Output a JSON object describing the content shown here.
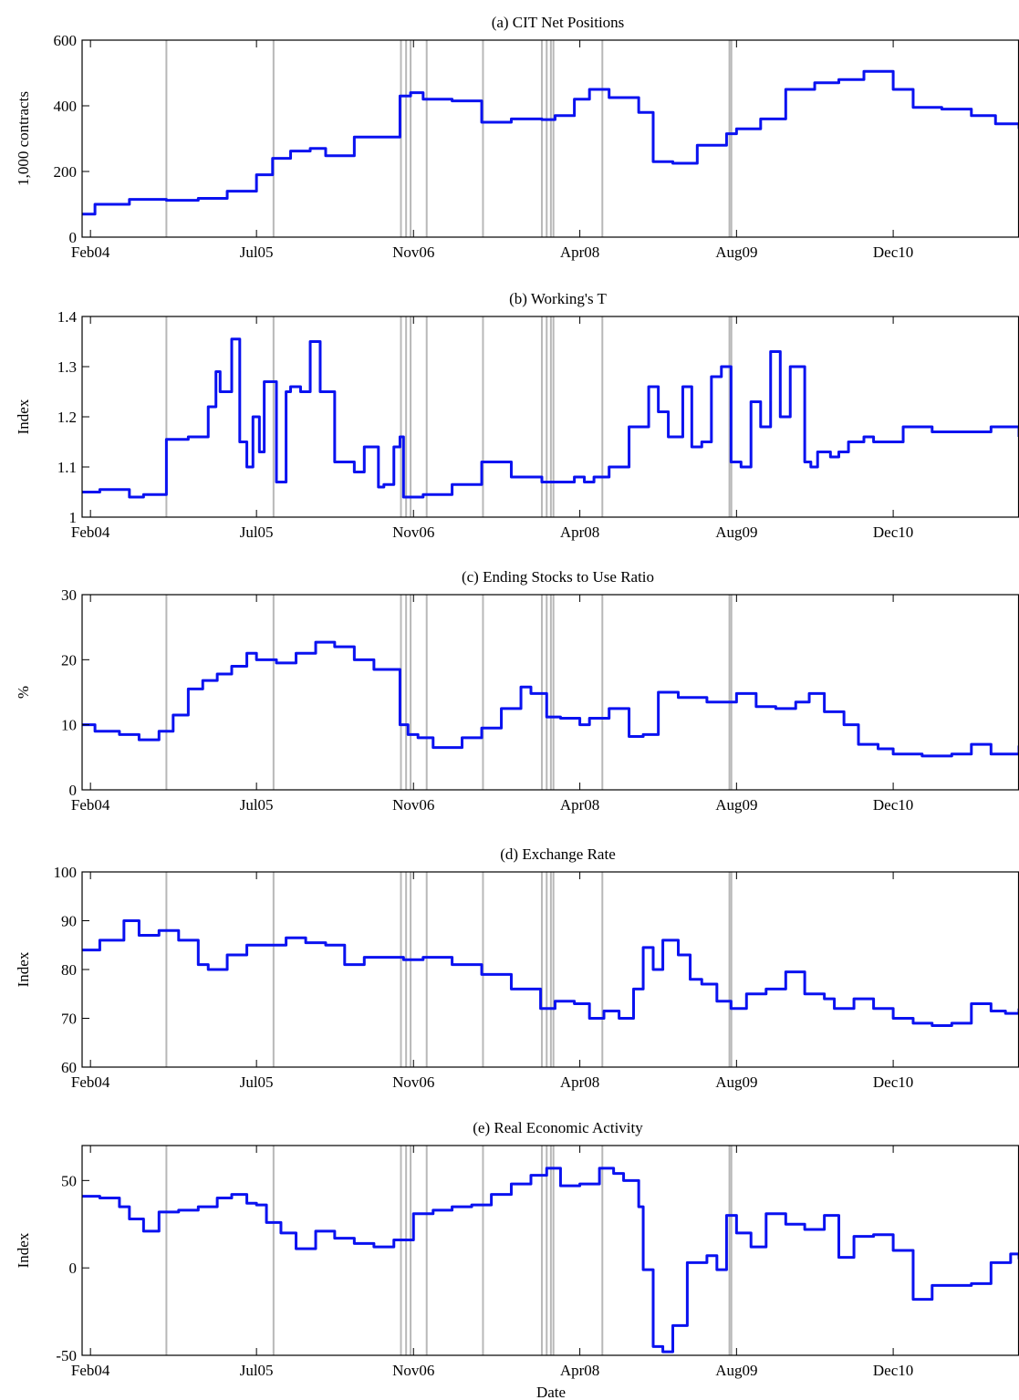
{
  "figure": {
    "xlabel": "Date",
    "x_ticks": [
      {
        "date": "2004-02-01",
        "label": "Feb04"
      },
      {
        "date": "2005-07-01",
        "label": "Jul05"
      },
      {
        "date": "2006-11-01",
        "label": "Nov06"
      },
      {
        "date": "2008-04-01",
        "label": "Apr08"
      },
      {
        "date": "2009-08-01",
        "label": "Aug09"
      },
      {
        "date": "2010-12-01",
        "label": "Dec10"
      }
    ],
    "xlim": [
      "2004-01-06",
      "2011-12-27"
    ],
    "event_lines": [
      {
        "date": "2004-09-24"
      },
      {
        "date": "2005-08-23"
      },
      {
        "date": "2006-09-23"
      },
      {
        "date": "2006-10-09"
      },
      {
        "date": "2006-10-23"
      },
      {
        "date": "2006-12-12"
      },
      {
        "date": "2007-06-05"
      },
      {
        "date": "2007-12-05"
      },
      {
        "date": "2007-12-20"
      },
      {
        "date": "2008-01-02"
      },
      {
        "date": "2008-01-10"
      },
      {
        "date": "2008-06-10"
      },
      {
        "date": "2009-07-10"
      },
      {
        "date": "2009-07-16"
      }
    ],
    "line_color": "#0a12f0",
    "event_color": "#b8b8b8"
  },
  "chart_data": [
    {
      "type": "line",
      "title": "(a) CIT Net Positions",
      "ylabel": "1,000 contracts",
      "ylim": [
        0,
        600
      ],
      "yticks": [
        "0",
        "200",
        "400",
        "600"
      ],
      "series": [
        {
          "x": [
            "2004-01-06",
            "2004-02-15",
            "2004-06-01",
            "2004-09-24",
            "2005-01-01",
            "2005-04-01",
            "2005-07-01",
            "2005-08-20",
            "2005-10-15",
            "2005-12-15",
            "2006-02-01",
            "2006-05-01",
            "2006-09-20",
            "2006-10-23",
            "2006-12-01",
            "2007-03-01",
            "2007-06-01",
            "2007-09-01",
            "2007-12-05",
            "2008-01-15",
            "2008-03-15",
            "2008-05-01",
            "2008-07-01",
            "2008-10-01",
            "2008-11-15",
            "2009-01-15",
            "2009-04-01",
            "2009-07-01",
            "2009-08-01",
            "2009-10-15",
            "2010-01-01",
            "2010-04-01",
            "2010-06-15",
            "2010-09-01",
            "2010-12-01",
            "2011-02-01",
            "2011-05-01",
            "2011-08-01",
            "2011-10-15",
            "2011-12-27"
          ],
          "y": [
            70,
            100,
            115,
            112,
            118,
            140,
            190,
            240,
            262,
            270,
            248,
            305,
            430,
            440,
            420,
            415,
            350,
            360,
            358,
            370,
            420,
            450,
            425,
            380,
            230,
            225,
            280,
            315,
            330,
            360,
            450,
            470,
            480,
            505,
            450,
            395,
            390,
            370,
            345,
            330
          ]
        }
      ]
    },
    {
      "type": "line",
      "title": "(b) Working's T",
      "ylabel": "Index",
      "ylim": [
        1,
        1.4
      ],
      "yticks": [
        "1",
        "1.1",
        "1.2",
        "1.3",
        "1.4"
      ],
      "series": [
        {
          "x": [
            "2004-01-06",
            "2004-03-01",
            "2004-06-01",
            "2004-07-15",
            "2004-09-24",
            "2004-12-01",
            "2005-02-01",
            "2005-02-25",
            "2005-03-10",
            "2005-04-15",
            "2005-05-10",
            "2005-06-01",
            "2005-06-20",
            "2005-07-10",
            "2005-07-25",
            "2005-09-01",
            "2005-10-01",
            "2005-10-15",
            "2005-11-15",
            "2005-12-15",
            "2006-01-15",
            "2006-03-01",
            "2006-05-01",
            "2006-06-01",
            "2006-07-15",
            "2006-08-01",
            "2006-09-01",
            "2006-09-20",
            "2006-10-01",
            "2006-12-01",
            "2007-03-01",
            "2007-06-01",
            "2007-09-01",
            "2007-12-05",
            "2008-01-15",
            "2008-03-15",
            "2008-04-15",
            "2008-05-15",
            "2008-07-01",
            "2008-09-01",
            "2008-11-01",
            "2008-12-01",
            "2009-01-01",
            "2009-02-15",
            "2009-03-15",
            "2009-04-15",
            "2009-05-15",
            "2009-06-15",
            "2009-07-15",
            "2009-08-15",
            "2009-09-15",
            "2009-10-15",
            "2009-11-15",
            "2009-12-15",
            "2010-01-15",
            "2010-03-01",
            "2010-03-20",
            "2010-04-10",
            "2010-05-01",
            "2010-05-20",
            "2010-06-15",
            "2010-07-15",
            "2010-09-01",
            "2010-10-01",
            "2011-01-01",
            "2011-04-01",
            "2011-07-01",
            "2011-10-01",
            "2011-12-27"
          ],
          "y": [
            1.05,
            1.055,
            1.04,
            1.045,
            1.155,
            1.16,
            1.22,
            1.29,
            1.25,
            1.355,
            1.15,
            1.1,
            1.2,
            1.13,
            1.27,
            1.07,
            1.25,
            1.26,
            1.25,
            1.35,
            1.25,
            1.11,
            1.09,
            1.14,
            1.06,
            1.065,
            1.14,
            1.16,
            1.04,
            1.045,
            1.065,
            1.11,
            1.08,
            1.07,
            1.07,
            1.08,
            1.07,
            1.08,
            1.1,
            1.18,
            1.26,
            1.21,
            1.16,
            1.26,
            1.14,
            1.15,
            1.28,
            1.3,
            1.11,
            1.1,
            1.23,
            1.18,
            1.33,
            1.2,
            1.3,
            1.11,
            1.1,
            1.13,
            1.13,
            1.12,
            1.13,
            1.15,
            1.16,
            1.15,
            1.18,
            1.17,
            1.17,
            1.18,
            1.16
          ]
        }
      ]
    },
    {
      "type": "line",
      "title": "(c) Ending Stocks to Use Ratio",
      "ylabel": "%",
      "ylim": [
        0,
        30
      ],
      "yticks": [
        "0",
        "10",
        "20",
        "30"
      ],
      "series": [
        {
          "x": [
            "2004-01-06",
            "2004-02-15",
            "2004-05-01",
            "2004-07-01",
            "2004-09-01",
            "2004-10-15",
            "2004-12-01",
            "2005-01-15",
            "2005-03-01",
            "2005-04-15",
            "2005-06-01",
            "2005-07-01",
            "2005-09-01",
            "2005-11-01",
            "2006-01-01",
            "2006-03-01",
            "2006-05-01",
            "2006-07-01",
            "2006-09-20",
            "2006-10-15",
            "2006-11-15",
            "2007-01-01",
            "2007-04-01",
            "2007-06-01",
            "2007-08-01",
            "2007-10-01",
            "2007-11-01",
            "2007-12-20",
            "2008-02-01",
            "2008-04-01",
            "2008-05-01",
            "2008-07-01",
            "2008-09-01",
            "2008-10-15",
            "2008-12-01",
            "2009-02-01",
            "2009-05-01",
            "2009-08-01",
            "2009-10-01",
            "2009-12-01",
            "2010-02-01",
            "2010-03-15",
            "2010-05-01",
            "2010-07-01",
            "2010-08-15",
            "2010-10-15",
            "2010-12-01",
            "2011-03-01",
            "2011-06-01",
            "2011-08-01",
            "2011-10-01",
            "2011-12-27"
          ],
          "y": [
            10,
            9,
            8.5,
            7.7,
            9,
            11.5,
            15.5,
            16.8,
            17.8,
            19,
            21,
            20,
            19.5,
            21,
            22.7,
            22,
            20,
            18.5,
            10,
            8.5,
            8,
            6.5,
            8,
            9.5,
            12.5,
            15.8,
            14.8,
            11.2,
            11,
            10,
            11,
            12.5,
            8.2,
            8.5,
            15,
            14.2,
            13.5,
            14.8,
            12.8,
            12.5,
            13.5,
            14.8,
            12,
            10,
            7,
            6.3,
            5.5,
            5.2,
            5.5,
            7,
            5.5,
            6.8
          ]
        }
      ]
    },
    {
      "type": "line",
      "title": "(d) Exchange Rate",
      "ylabel": "Index",
      "ylim": [
        60,
        100
      ],
      "yticks": [
        "60",
        "70",
        "80",
        "90",
        "100"
      ],
      "series": [
        {
          "x": [
            "2004-01-06",
            "2004-03-01",
            "2004-05-15",
            "2004-07-01",
            "2004-09-01",
            "2004-11-01",
            "2005-01-01",
            "2005-02-01",
            "2005-04-01",
            "2005-06-01",
            "2005-08-01",
            "2005-10-01",
            "2005-12-01",
            "2006-02-01",
            "2006-04-01",
            "2006-06-01",
            "2006-08-01",
            "2006-10-01",
            "2006-12-01",
            "2007-03-01",
            "2007-06-01",
            "2007-09-01",
            "2007-12-01",
            "2008-01-15",
            "2008-03-15",
            "2008-05-01",
            "2008-06-15",
            "2008-08-01",
            "2008-09-15",
            "2008-10-15",
            "2008-11-15",
            "2008-12-15",
            "2009-02-01",
            "2009-03-10",
            "2009-04-15",
            "2009-06-01",
            "2009-07-15",
            "2009-09-01",
            "2009-11-01",
            "2010-01-01",
            "2010-03-01",
            "2010-05-01",
            "2010-06-01",
            "2010-08-01",
            "2010-10-01",
            "2010-12-01",
            "2011-02-01",
            "2011-04-01",
            "2011-06-01",
            "2011-08-01",
            "2011-10-01",
            "2011-11-15",
            "2011-12-27"
          ],
          "y": [
            84,
            86,
            90,
            87,
            88,
            86,
            81,
            80,
            83,
            85,
            85,
            86.5,
            85.5,
            85,
            81,
            82.5,
            82.5,
            82,
            82.5,
            81,
            79,
            76,
            72,
            73.5,
            73,
            70,
            71.5,
            70,
            76,
            84.5,
            80,
            86,
            83,
            78,
            77,
            73.5,
            72,
            75,
            76,
            79.5,
            75,
            74,
            72,
            74,
            72,
            70,
            69,
            68.5,
            69,
            73,
            71.5,
            71,
            72
          ]
        }
      ]
    },
    {
      "type": "line",
      "title": "(e) Real Economic Activity",
      "ylabel": "Index",
      "ylim": [
        -50,
        70
      ],
      "yticks": [
        "-50",
        "0",
        "50"
      ],
      "series": [
        {
          "x": [
            "2004-01-06",
            "2004-03-01",
            "2004-05-01",
            "2004-06-01",
            "2004-07-15",
            "2004-09-01",
            "2004-11-01",
            "2005-01-01",
            "2005-03-01",
            "2005-04-15",
            "2005-06-01",
            "2005-07-01",
            "2005-08-01",
            "2005-09-15",
            "2005-11-01",
            "2006-01-01",
            "2006-03-01",
            "2006-05-01",
            "2006-07-01",
            "2006-09-01",
            "2006-11-01",
            "2007-01-01",
            "2007-03-01",
            "2007-05-01",
            "2007-07-01",
            "2007-09-01",
            "2007-11-01",
            "2007-12-20",
            "2008-02-01",
            "2008-04-01",
            "2008-06-01",
            "2008-07-15",
            "2008-08-15",
            "2008-10-01",
            "2008-10-15",
            "2008-11-15",
            "2008-12-15",
            "2009-01-15",
            "2009-03-01",
            "2009-05-01",
            "2009-06-01",
            "2009-07-01",
            "2009-08-01",
            "2009-09-15",
            "2009-11-01",
            "2010-01-01",
            "2010-03-01",
            "2010-05-01",
            "2010-06-15",
            "2010-08-01",
            "2010-10-01",
            "2010-12-01",
            "2011-02-01",
            "2011-04-01",
            "2011-06-01",
            "2011-08-01",
            "2011-10-01",
            "2011-12-01",
            "2011-12-27"
          ],
          "y": [
            41,
            40,
            35,
            28,
            21,
            32,
            33,
            35,
            40,
            42,
            37,
            36,
            26,
            20,
            11,
            21,
            17,
            14,
            12,
            16,
            31,
            33,
            35,
            36,
            42,
            48,
            53,
            57,
            47,
            48,
            57,
            54,
            50,
            35,
            -1,
            -45,
            -48,
            -33,
            3,
            7,
            -1,
            30,
            20,
            12,
            31,
            25,
            22,
            30,
            6,
            18,
            19,
            10,
            -18,
            -10,
            -10,
            -9,
            3,
            8,
            5
          ]
        }
      ]
    }
  ]
}
